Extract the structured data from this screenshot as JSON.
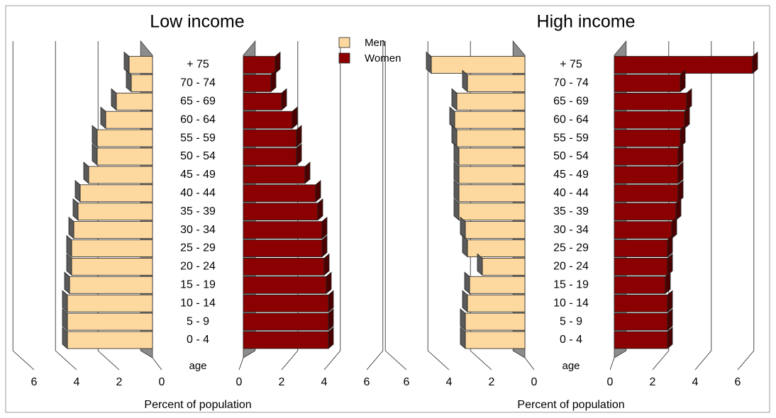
{
  "chart_data": [
    {
      "type": "pyramid",
      "title": "Low income",
      "xlabel": "Percent of population",
      "ylabel": "age",
      "categories": [
        "0 - 4",
        "5 - 9",
        "10 - 14",
        "15 - 19",
        "20 - 24",
        "25 - 29",
        "30 - 34",
        "35 - 39",
        "40 - 44",
        "45 - 49",
        "50 - 54",
        "55 - 59",
        "60 - 64",
        "65 - 69",
        "70 - 74",
        "+ 75"
      ],
      "series": [
        {
          "name": "Men",
          "color": "#fdd9a0",
          "values": [
            4.0,
            4.0,
            4.0,
            3.9,
            3.8,
            3.8,
            3.7,
            3.5,
            3.4,
            3.0,
            2.6,
            2.6,
            2.2,
            1.7,
            1.0,
            1.1
          ]
        },
        {
          "name": "Women",
          "color": "#8b0000",
          "values": [
            4.0,
            4.0,
            4.0,
            3.9,
            3.8,
            3.7,
            3.7,
            3.5,
            3.4,
            2.9,
            2.5,
            2.5,
            2.3,
            1.8,
            1.3,
            1.5
          ]
        }
      ],
      "xlim": [
        0,
        6
      ],
      "xticks": [
        0,
        2,
        4,
        6
      ],
      "grid": true
    },
    {
      "type": "pyramid",
      "title": "High income",
      "xlabel": "Percent of population",
      "ylabel": "age",
      "categories": [
        "0 - 4",
        "5 - 9",
        "10 - 14",
        "15 - 19",
        "20 - 24",
        "25 - 29",
        "30 - 34",
        "35 - 39",
        "40 - 44",
        "45 - 49",
        "50 - 54",
        "55 - 59",
        "60 - 64",
        "65 - 69",
        "70 - 74",
        "+ 75"
      ],
      "series": [
        {
          "color": "#fdd9a0",
          "values": [
            2.8,
            2.8,
            2.7,
            2.6,
            2.0,
            2.7,
            2.8,
            3.1,
            3.1,
            3.1,
            3.1,
            3.2,
            3.3,
            3.2,
            2.7,
            4.4
          ]
        },
        {
          "color": "#8b0000",
          "values": [
            2.5,
            2.5,
            2.5,
            2.4,
            2.5,
            2.5,
            2.7,
            2.9,
            3.0,
            3.0,
            3.0,
            3.1,
            3.3,
            3.4,
            3.1,
            6.5
          ]
        }
      ],
      "xlim": [
        0,
        6
      ],
      "xticks": [
        0,
        2,
        4,
        6
      ],
      "grid": true
    }
  ]
}
